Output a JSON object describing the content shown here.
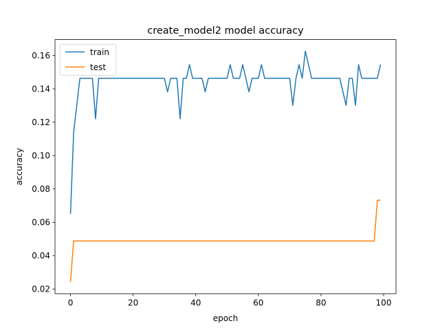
{
  "chart_data": {
    "type": "line",
    "title": "create_model2 model accuracy",
    "xlabel": "epoch",
    "ylabel": "accuracy",
    "xlim": [
      -4.95,
      103.95
    ],
    "ylim": [
      0.0172,
      0.1695
    ],
    "xticks": [
      0,
      20,
      40,
      60,
      80,
      100
    ],
    "yticks": [
      0.02,
      0.04,
      0.06,
      0.08,
      0.1,
      0.12,
      0.14,
      0.16
    ],
    "xtick_labels": [
      "0",
      "20",
      "40",
      "60",
      "80",
      "100"
    ],
    "ytick_labels": [
      "0.02",
      "0.04",
      "0.06",
      "0.08",
      "0.10",
      "0.12",
      "0.14",
      "0.16"
    ],
    "grid": false,
    "legend_position": "upper-left",
    "series": [
      {
        "name": "train",
        "color": "#1f77b4",
        "values": [
          0.065,
          0.1138,
          0.1301,
          0.1463,
          0.1463,
          0.1463,
          0.1463,
          0.1463,
          0.122,
          0.1463,
          0.1463,
          0.1463,
          0.1463,
          0.1463,
          0.1463,
          0.1463,
          0.1463,
          0.1463,
          0.1463,
          0.1463,
          0.1463,
          0.1463,
          0.1463,
          0.1463,
          0.1463,
          0.1463,
          0.1463,
          0.1463,
          0.1463,
          0.1463,
          0.1463,
          0.1382,
          0.1463,
          0.1463,
          0.1463,
          0.122,
          0.1463,
          0.1463,
          0.1545,
          0.1463,
          0.1463,
          0.1463,
          0.1463,
          0.1382,
          0.1463,
          0.1463,
          0.1463,
          0.1463,
          0.1463,
          0.1463,
          0.1463,
          0.1545,
          0.1463,
          0.1463,
          0.1463,
          0.1545,
          0.1463,
          0.1382,
          0.1463,
          0.1463,
          0.1463,
          0.1545,
          0.1463,
          0.1463,
          0.1463,
          0.1463,
          0.1463,
          0.1463,
          0.1463,
          0.1463,
          0.1463,
          0.1301,
          0.1463,
          0.1545,
          0.1463,
          0.1626,
          0.1545,
          0.1463,
          0.1463,
          0.1463,
          0.1463,
          0.1463,
          0.1463,
          0.1463,
          0.1463,
          0.1463,
          0.1463,
          0.1382,
          0.1301,
          0.1463,
          0.1463,
          0.1301,
          0.1545,
          0.1463,
          0.1463,
          0.1463,
          0.1463,
          0.1463,
          0.1463,
          0.1545
        ]
      },
      {
        "name": "test",
        "color": "#ff7f0e",
        "values": [
          0.0244,
          0.0488,
          0.0488,
          0.0488,
          0.0488,
          0.0488,
          0.0488,
          0.0488,
          0.0488,
          0.0488,
          0.0488,
          0.0488,
          0.0488,
          0.0488,
          0.0488,
          0.0488,
          0.0488,
          0.0488,
          0.0488,
          0.0488,
          0.0488,
          0.0488,
          0.0488,
          0.0488,
          0.0488,
          0.0488,
          0.0488,
          0.0488,
          0.0488,
          0.0488,
          0.0488,
          0.0488,
          0.0488,
          0.0488,
          0.0488,
          0.0488,
          0.0488,
          0.0488,
          0.0488,
          0.0488,
          0.0488,
          0.0488,
          0.0488,
          0.0488,
          0.0488,
          0.0488,
          0.0488,
          0.0488,
          0.0488,
          0.0488,
          0.0488,
          0.0488,
          0.0488,
          0.0488,
          0.0488,
          0.0488,
          0.0488,
          0.0488,
          0.0488,
          0.0488,
          0.0488,
          0.0488,
          0.0488,
          0.0488,
          0.0488,
          0.0488,
          0.0488,
          0.0488,
          0.0488,
          0.0488,
          0.0488,
          0.0488,
          0.0488,
          0.0488,
          0.0488,
          0.0488,
          0.0488,
          0.0488,
          0.0488,
          0.0488,
          0.0488,
          0.0488,
          0.0488,
          0.0488,
          0.0488,
          0.0488,
          0.0488,
          0.0488,
          0.0488,
          0.0488,
          0.0488,
          0.0488,
          0.0488,
          0.0488,
          0.0488,
          0.0488,
          0.0488,
          0.0488,
          0.0732,
          0.0732
        ]
      }
    ]
  }
}
